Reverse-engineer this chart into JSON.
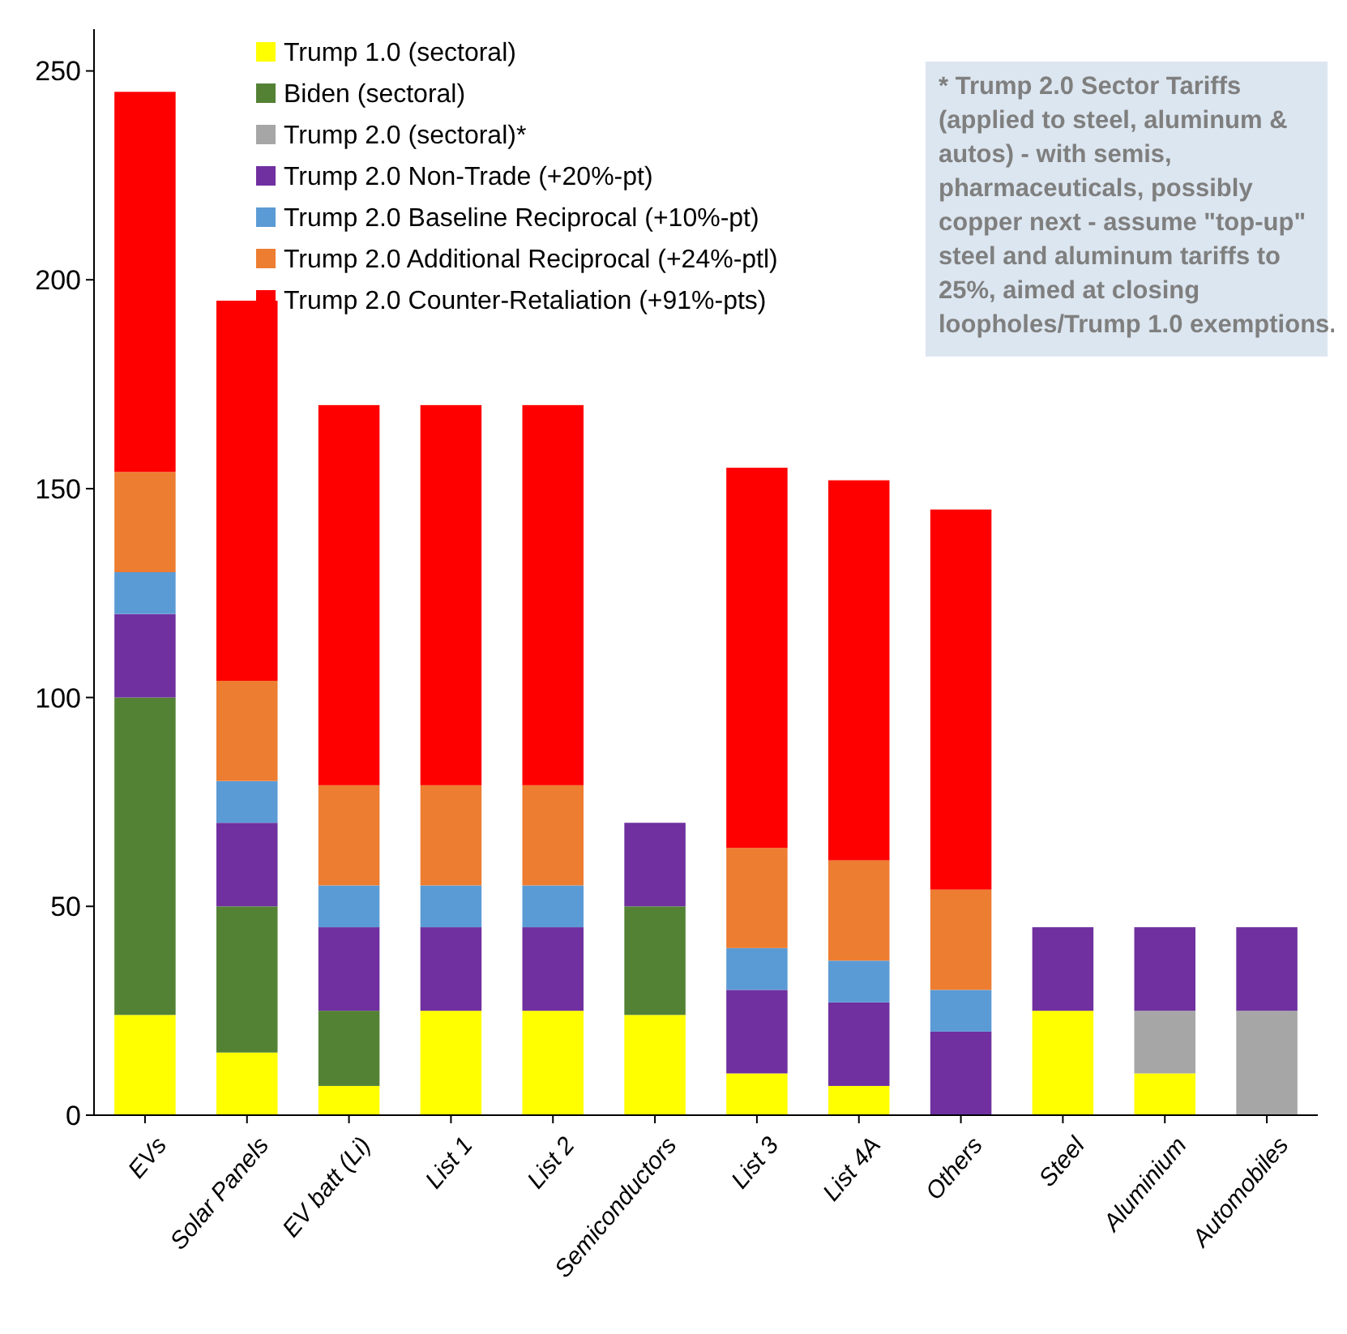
{
  "chart_data": {
    "type": "bar",
    "stacked": true,
    "categories": [
      "EVs",
      "Solar Panels",
      "EV batt (Li)",
      "List 1",
      "List 2",
      "Semiconductors",
      "List 3",
      "List 4A",
      "Others",
      "Steel",
      "Aluminium",
      "Automobiles"
    ],
    "series": [
      {
        "name": "Trump 1.0 (sectoral)",
        "color": "#ffff00",
        "values": [
          24,
          15,
          7,
          25,
          25,
          24,
          10,
          7,
          null,
          25,
          10,
          null
        ]
      },
      {
        "name": "Biden (sectoral)",
        "color": "#548235",
        "values": [
          76,
          35,
          18,
          null,
          null,
          26,
          null,
          null,
          null,
          null,
          null,
          null
        ]
      },
      {
        "name": "Trump 2.0 (sectoral)*",
        "color": "#a6a6a6",
        "values": [
          null,
          null,
          null,
          null,
          null,
          null,
          null,
          null,
          null,
          null,
          15,
          25
        ]
      },
      {
        "name": "Trump 2.0 Non-Trade (+20%-pt)",
        "color": "#7030a0",
        "values": [
          20,
          20,
          20,
          20,
          20,
          20,
          20,
          20,
          20,
          20,
          20,
          20
        ]
      },
      {
        "name": "Trump 2.0 Baseline Reciprocal (+10%-pt)",
        "color": "#5b9bd5",
        "values": [
          10,
          10,
          10,
          10,
          10,
          null,
          10,
          10,
          10,
          null,
          null,
          null
        ]
      },
      {
        "name": "Trump 2.0 Additional Reciprocal (+24%-ptl)",
        "color": "#ed7d31",
        "values": [
          24,
          24,
          24,
          24,
          24,
          null,
          24,
          24,
          24,
          null,
          null,
          null
        ]
      },
      {
        "name": "Trump 2.0 Counter-Retaliation (+91%-pts)",
        "color": "#ff0000",
        "values": [
          91,
          91,
          91,
          91,
          91,
          null,
          91,
          91,
          91,
          null,
          null,
          null
        ]
      }
    ],
    "ylim": [
      0,
      260
    ],
    "yticks": [
      0,
      50,
      100,
      150,
      200,
      250
    ],
    "grid": false,
    "legend": "top left",
    "annotations": [
      "* Trump 2.0 Sector Tariffs (applied to steel, aluminum & autos) - with semis, pharmaceuticals, possibly copper next - assume \"top-up\" steel and aluminum tariffs to 25%, aimed at closing loopholes/Trump 1.0 exemptions."
    ]
  }
}
